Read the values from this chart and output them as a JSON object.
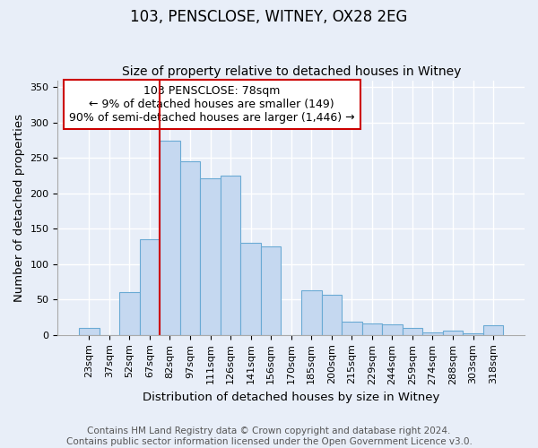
{
  "title": "103, PENSCLOSE, WITNEY, OX28 2EG",
  "subtitle": "Size of property relative to detached houses in Witney",
  "xlabel": "Distribution of detached houses by size in Witney",
  "ylabel": "Number of detached properties",
  "footer_line1": "Contains HM Land Registry data © Crown copyright and database right 2024.",
  "footer_line2": "Contains public sector information licensed under the Open Government Licence v3.0.",
  "annotation_title": "103 PENSCLOSE: 78sqm",
  "annotation_line2": "← 9% of detached houses are smaller (149)",
  "annotation_line3": "90% of semi-detached houses are larger (1,446) →",
  "bar_labels": [
    "23sqm",
    "37sqm",
    "52sqm",
    "67sqm",
    "82sqm",
    "97sqm",
    "111sqm",
    "126sqm",
    "141sqm",
    "156sqm",
    "170sqm",
    "185sqm",
    "200sqm",
    "215sqm",
    "229sqm",
    "244sqm",
    "259sqm",
    "274sqm",
    "288sqm",
    "303sqm",
    "318sqm"
  ],
  "bar_values": [
    10,
    0,
    60,
    135,
    275,
    245,
    222,
    225,
    130,
    125,
    0,
    63,
    57,
    19,
    16,
    15,
    10,
    4,
    6,
    2,
    14
  ],
  "bar_color": "#c5d8f0",
  "bar_edge_color": "#6aaad4",
  "highlight_bar_index": 4,
  "highlight_color": "#cc0000",
  "ylim": [
    0,
    360
  ],
  "yticks": [
    0,
    50,
    100,
    150,
    200,
    250,
    300,
    350
  ],
  "background_color": "#e8eef8",
  "plot_bg_color": "#e8eef8",
  "annotation_box_color": "#ffffff",
  "annotation_box_edge": "#cc0000",
  "title_fontsize": 12,
  "subtitle_fontsize": 10,
  "axis_label_fontsize": 9.5,
  "tick_fontsize": 8,
  "annotation_fontsize": 9,
  "footer_fontsize": 7.5
}
